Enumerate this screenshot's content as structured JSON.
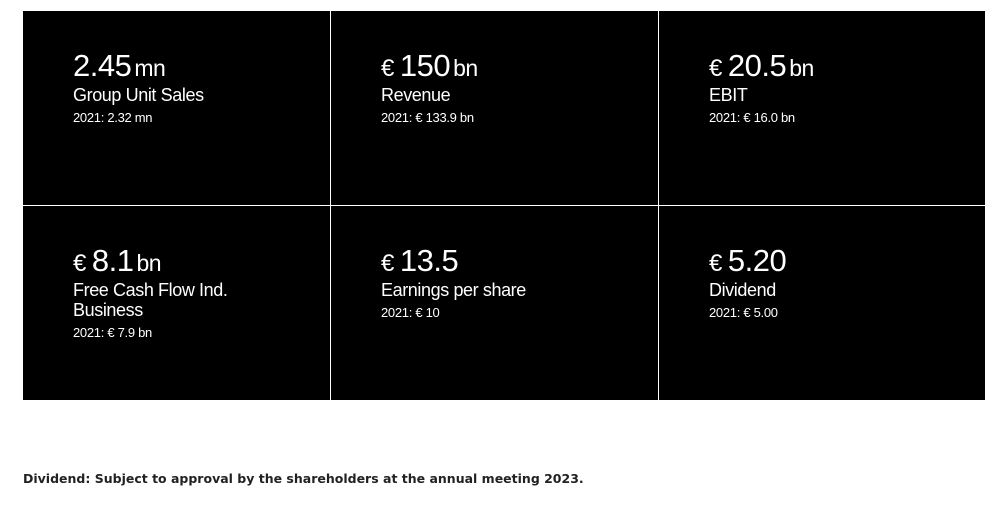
{
  "kpis": [
    {
      "currency": "",
      "value": "2.45",
      "unit": "mn",
      "label": "Group Unit Sales",
      "compare": "2021: 2.32 mn"
    },
    {
      "currency": "€",
      "value": "150",
      "unit": "bn",
      "label": "Revenue",
      "compare": "2021: € 133.9 bn"
    },
    {
      "currency": "€",
      "value": "20.5",
      "unit": "bn",
      "label": "EBIT",
      "compare": "2021: € 16.0 bn"
    },
    {
      "currency": "€",
      "value": "8.1",
      "unit": "bn",
      "label": "Free Cash Flow Ind. Business",
      "compare": "2021: € 7.9 bn"
    },
    {
      "currency": "€",
      "value": "13.5",
      "unit": "",
      "label": "Earnings per share",
      "compare": "2021: € 10"
    },
    {
      "currency": "€",
      "value": "5.20",
      "unit": "",
      "label": "Dividend",
      "compare": "2021: € 5.00"
    }
  ],
  "footnote": "Dividend: Subject to approval by the shareholders at the annual meeting 2023.",
  "colors": {
    "tile_background": "#000000",
    "tile_text": "#ffffff",
    "page_background": "#ffffff",
    "footnote_text": "#222222"
  }
}
